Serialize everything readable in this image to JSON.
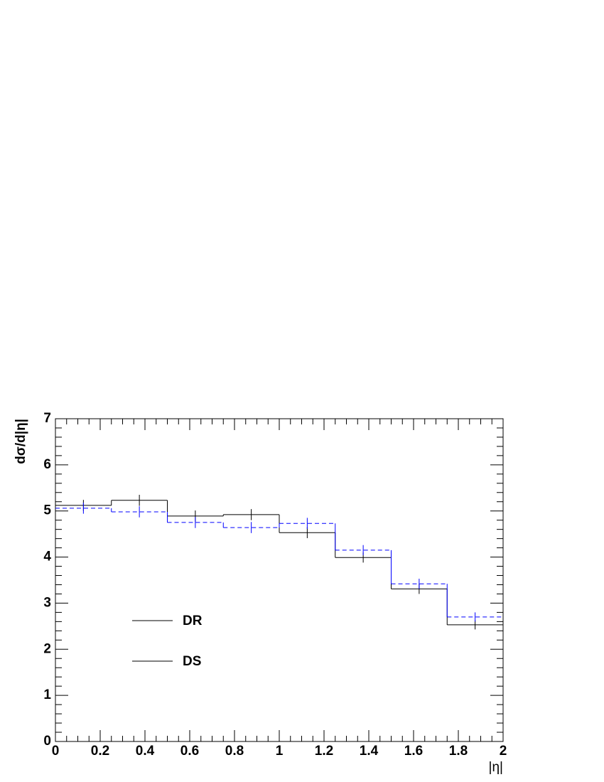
{
  "chart_data": {
    "type": "histogram",
    "y_label": "dσ/d|η|",
    "x_label": "|η|",
    "bins": [
      0,
      0.25,
      0.5,
      0.75,
      1,
      1.25,
      1.5,
      1.75,
      2
    ],
    "series": [
      {
        "name": "DR",
        "color": "#000000",
        "line_style": "solid",
        "values": [
          5.12,
          5.23,
          4.89,
          4.92,
          4.53,
          3.99,
          3.31,
          2.53
        ],
        "errors": [
          0.12,
          0.12,
          0.12,
          0.12,
          0.12,
          0.11,
          0.11,
          0.1
        ]
      },
      {
        "name": "DS",
        "color": "#0000ff",
        "line_style": "dashed",
        "values": [
          5.06,
          4.98,
          4.75,
          4.64,
          4.73,
          4.15,
          3.42,
          2.7
        ],
        "errors": [
          0.12,
          0.12,
          0.12,
          0.12,
          0.12,
          0.11,
          0.11,
          0.1
        ]
      }
    ],
    "xlim": [
      0,
      2
    ],
    "ylim": [
      0,
      7
    ],
    "xticks": [
      0,
      0.2,
      0.4,
      0.6,
      0.8,
      1,
      1.2,
      1.4,
      1.6,
      1.8,
      2
    ],
    "yticks": [
      0,
      1,
      2,
      3,
      4,
      5,
      6,
      7
    ]
  }
}
